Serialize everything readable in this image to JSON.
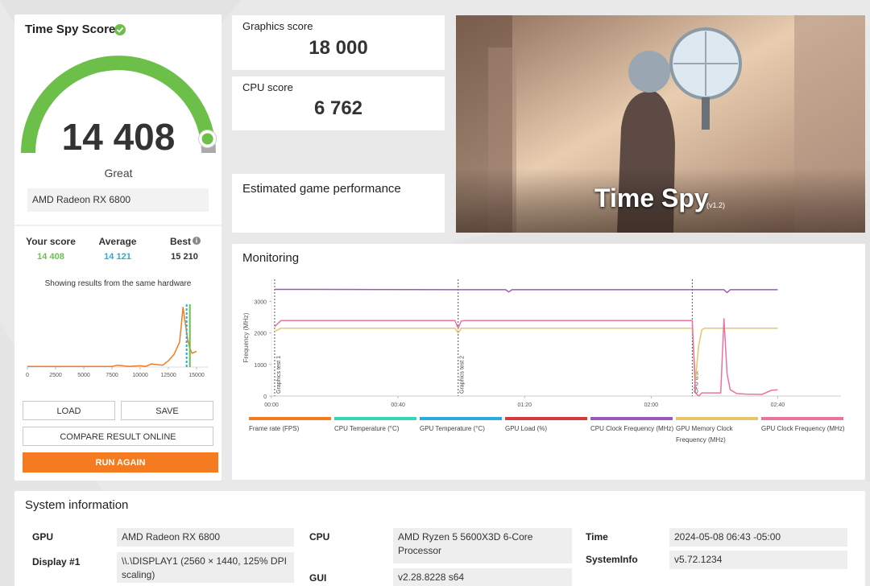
{
  "score_panel": {
    "title": "Time Spy Score",
    "score": "14 408",
    "rating": "Great",
    "gpu": "AMD Radeon RX 6800",
    "your_score_label": "Your score",
    "your_score": "14 408",
    "average_label": "Average",
    "average": "14 121",
    "best_label": "Best",
    "best": "15 210",
    "hardware_note": "Showing results from the same hardware",
    "distribution": {
      "type": "line",
      "color": "#f47b20",
      "x": [
        0,
        2500,
        5000,
        7500,
        8000,
        9000,
        10000,
        10500,
        11000,
        12000,
        12500,
        13000,
        13500,
        13800,
        14000,
        14200,
        14400,
        14600,
        15000
      ],
      "values": [
        1,
        1,
        1,
        1,
        3,
        1,
        2,
        1,
        5,
        3,
        10,
        20,
        40,
        95,
        70,
        45,
        30,
        22,
        25
      ],
      "xlim": [
        0,
        16000
      ],
      "ylim": [
        0,
        100
      ],
      "xticks": [
        0,
        2500,
        5000,
        7500,
        10000,
        12500,
        15000
      ],
      "markers": [
        {
          "x": 14408,
          "color": "#6cc04a",
          "dashed": false
        },
        {
          "x": 14121,
          "color": "#29abe2",
          "dashed": true
        }
      ]
    }
  },
  "buttons": {
    "load": "LOAD",
    "save": "SAVE",
    "compare": "COMPARE RESULT ONLINE",
    "run_again": "RUN AGAIN"
  },
  "graphics_score": {
    "label": "Graphics score",
    "value": "18 000"
  },
  "cpu_score": {
    "label": "CPU score",
    "value": "6 762"
  },
  "estimated": {
    "title": "Estimated game performance"
  },
  "banner": {
    "title": "Time Spy",
    "version": "(v1.2)"
  },
  "monitoring": {
    "title": "Monitoring",
    "chart": {
      "type": "line",
      "y_label": "Frequency (MHz)",
      "x": [
        1,
        3,
        58,
        59,
        60,
        61,
        62,
        74,
        75,
        76,
        132,
        133,
        134,
        135,
        136,
        137,
        142,
        143,
        144,
        145,
        147,
        150,
        155,
        158,
        160
      ],
      "xlim": [
        0,
        180
      ],
      "ylim": [
        0,
        3700
      ],
      "yticks": [
        0,
        1000,
        2000,
        3000
      ],
      "xticks": [
        {
          "value": 0,
          "label": "00:00"
        },
        {
          "value": 40,
          "label": "00:40"
        },
        {
          "value": 80,
          "label": "01:20"
        },
        {
          "value": 120,
          "label": "02:00"
        },
        {
          "value": 160,
          "label": "02:40"
        }
      ],
      "markers": [
        {
          "x": 1,
          "label": "Graphics test 1"
        },
        {
          "x": 59,
          "label": "Graphics test 2"
        },
        {
          "x": 133,
          "label": "CPU test"
        }
      ],
      "series": [
        {
          "name": "Frame rate (FPS)",
          "color": "#f47b20",
          "values": [
            null,
            null,
            null,
            null,
            null,
            null,
            null,
            null,
            null,
            null,
            null,
            null,
            null,
            null,
            null,
            null,
            null,
            null,
            null,
            null,
            null,
            null,
            null,
            null,
            null
          ]
        },
        {
          "name": "CPU Temperature (°C)",
          "color": "#33d6b8",
          "values": [
            null,
            null,
            null,
            null,
            null,
            null,
            null,
            null,
            null,
            null,
            null,
            null,
            null,
            null,
            null,
            null,
            null,
            null,
            null,
            null,
            null,
            null,
            null,
            null,
            null
          ]
        },
        {
          "name": "GPU Temperature (°C)",
          "color": "#29abe2",
          "values": [
            null,
            null,
            null,
            null,
            null,
            null,
            null,
            null,
            null,
            null,
            null,
            null,
            null,
            null,
            null,
            null,
            null,
            null,
            null,
            null,
            null,
            null,
            null,
            null,
            null
          ]
        },
        {
          "name": "GPU Load (%)",
          "color": "#d63a3a",
          "values": [
            null,
            null,
            null,
            null,
            null,
            null,
            null,
            null,
            null,
            null,
            null,
            null,
            null,
            null,
            null,
            null,
            null,
            null,
            null,
            null,
            null,
            null,
            null,
            null,
            null
          ]
        },
        {
          "name": "CPU Clock Frequency (MHz)",
          "color": "#9b59b6",
          "values": [
            3380,
            3380,
            3370,
            3370,
            3370,
            3370,
            3370,
            3370,
            3300,
            3370,
            3370,
            3370,
            3370,
            3370,
            3370,
            3370,
            3370,
            3370,
            3280,
            3370,
            3370,
            3370,
            3370,
            3370,
            3370
          ]
        },
        {
          "name": "GPU Memory Clock Frequency (MHz)",
          "color": "#e8c46a",
          "values": [
            2050,
            2150,
            2150,
            2000,
            2150,
            2150,
            2150,
            2150,
            2150,
            2150,
            2150,
            2150,
            500,
            1600,
            2100,
            2150,
            2150,
            2150,
            2150,
            2150,
            2150,
            2150,
            2150,
            2150,
            2150
          ]
        },
        {
          "name": "GPU Clock Frequency (MHz)",
          "color": "#e8739e",
          "values": [
            2200,
            2390,
            2390,
            2150,
            2380,
            2390,
            2390,
            2390,
            2390,
            2390,
            2390,
            2390,
            100,
            0,
            100,
            100,
            100,
            2450,
            700,
            200,
            80,
            60,
            50,
            180,
            200
          ]
        }
      ]
    }
  },
  "system_info": {
    "title": "System information",
    "rows": [
      {
        "label": "GPU",
        "value": "AMD Radeon RX 6800"
      },
      {
        "label": "Display #1",
        "value": "\\\\.\\DISPLAY1 (2560 × 1440, 125% DPI scaling)"
      },
      {
        "label": "CPU",
        "value": "AMD Ryzen 5 5600X3D 6-Core Processor"
      },
      {
        "label": "GUI",
        "value": "v2.28.8228 s64"
      },
      {
        "label": "Time",
        "value": "2024-05-08 06:43 -05:00"
      },
      {
        "label": "SystemInfo",
        "value": "v5.72.1234"
      }
    ]
  }
}
